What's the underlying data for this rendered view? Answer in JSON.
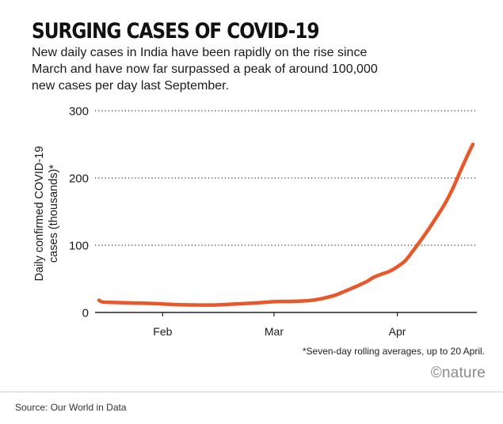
{
  "header": {
    "title": "SURGING CASES OF COVID-19",
    "subtitle": "New daily cases in India have been rapidly on the rise since March and have now far surpassed a peak of around 100,000 new cases per day last September."
  },
  "footer": {
    "note": "*Seven-day rolling averages, up to 20 April.",
    "brand": "©nature",
    "source": "Source: Our World in Data"
  },
  "chart_data": {
    "type": "line",
    "title": "SURGING CASES OF COVID-19",
    "ylabel_lines": [
      "Daily confirmed COVID-19",
      "cases (thousands)*"
    ],
    "xlabel": "",
    "ylim": [
      0,
      300
    ],
    "yticks": [
      0,
      100,
      200,
      300
    ],
    "ytick_labels": [
      "0",
      "100",
      "200",
      "300"
    ],
    "xticks": [
      {
        "label": "Feb",
        "x": 32
      },
      {
        "label": "Mar",
        "x": 60
      },
      {
        "label": "Apr",
        "x": 91
      }
    ],
    "xlim": [
      15,
      111
    ],
    "grid": "horizontal-dotted",
    "line_color": "#e8582a",
    "series": [
      {
        "name": "",
        "x": [
          16,
          17,
          20,
          25,
          30,
          35,
          40,
          45,
          50,
          55,
          60,
          65,
          70,
          75,
          78,
          80,
          83,
          85,
          87,
          89,
          91,
          93,
          95,
          97,
          99,
          101,
          103,
          105,
          107,
          109,
          110
        ],
        "values": [
          18.1,
          15.5,
          14.8,
          14.0,
          13.2,
          11.8,
          11.2,
          11.0,
          12.5,
          14.0,
          16.0,
          16.5,
          18.5,
          25.0,
          32.0,
          37.0,
          45.0,
          52.0,
          57.0,
          61.0,
          68.0,
          77.0,
          92.0,
          108.0,
          125.0,
          143.0,
          162.0,
          185.0,
          212.0,
          238.0,
          250.0
        ]
      }
    ]
  }
}
